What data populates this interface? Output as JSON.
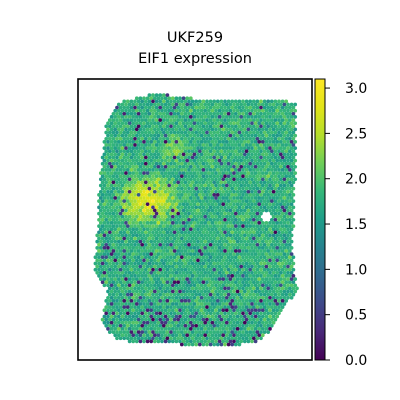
{
  "chart_data": {
    "type": "scatter",
    "subtype": "spatial-transcriptomics-spot-map",
    "title_lines": [
      "UKF259",
      "EIF1 expression"
    ],
    "xlabel": "",
    "ylabel": "",
    "grid": false,
    "axis_ticks_shown": false,
    "colorbar": {
      "colormap": "viridis",
      "range": [
        0.0,
        3.1
      ],
      "ticks": [
        "0.0",
        "0.5",
        "1.0",
        "1.5",
        "2.0",
        "2.5",
        "3.0"
      ],
      "tick_values": [
        0.0,
        0.5,
        1.0,
        1.5,
        2.0,
        2.5,
        3.0
      ],
      "placement": "right"
    },
    "value_summary": {
      "typical_range": [
        1.5,
        2.0
      ],
      "high_region": "left-center cluster reaching ~2.8–3.0",
      "low_spots": "scattered dark spots near 0.0–0.5, denser toward the bottom"
    }
  }
}
